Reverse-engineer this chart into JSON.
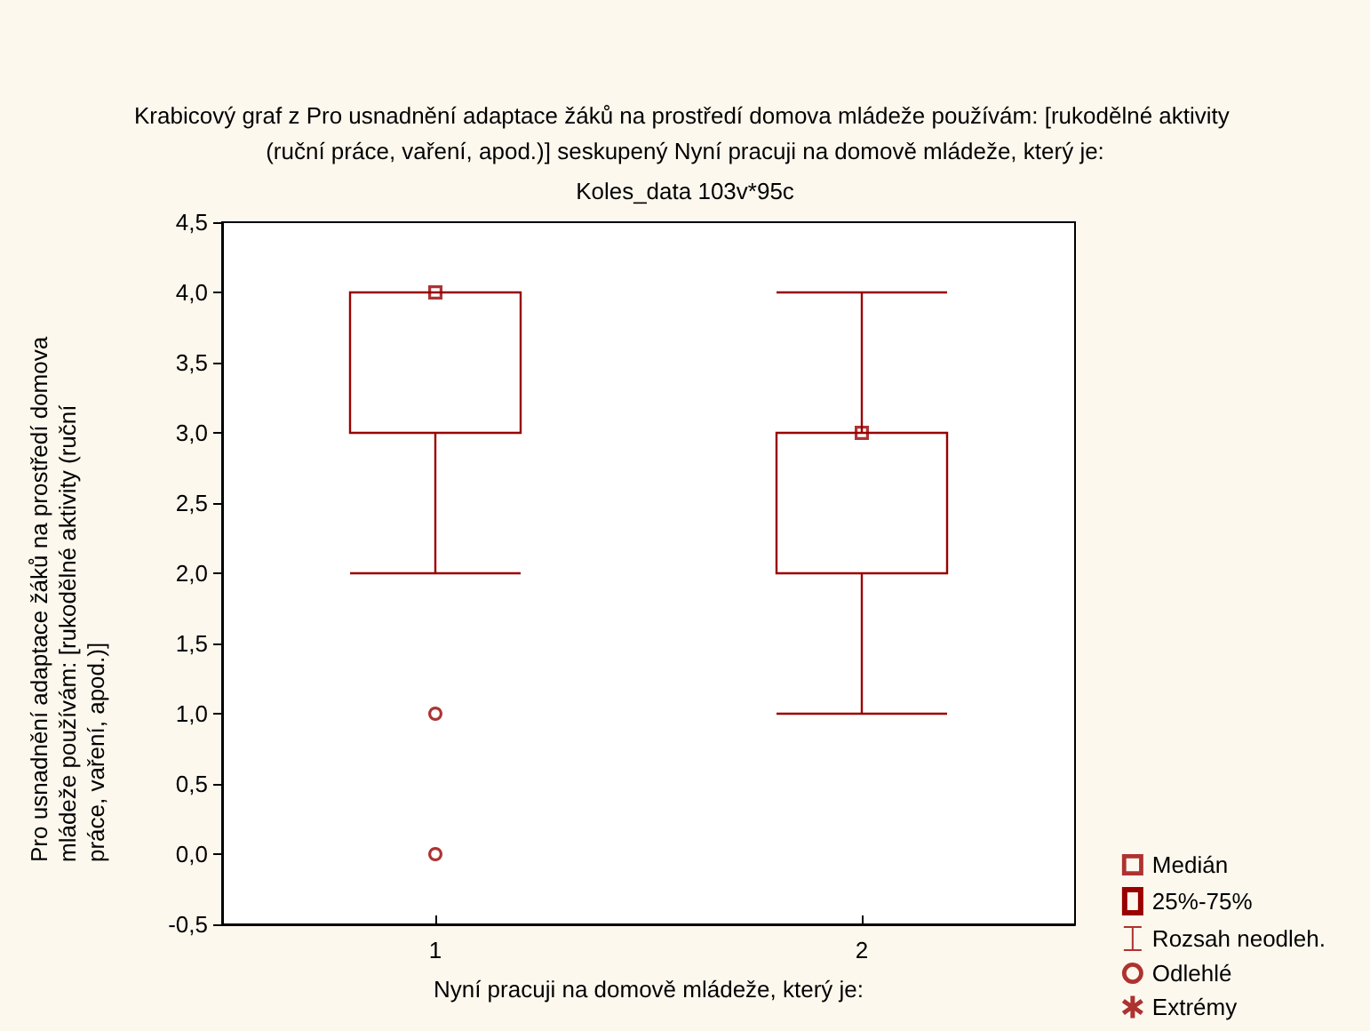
{
  "chart_data": {
    "type": "box",
    "title": "Krabicový graf z Pro usnadnění adaptace žáků na prostředí domova mládeže používám: [rukodělné aktivity (ruční práce, vaření, apod.)] seskupený Nyní pracuji na domově mládeže, který je:",
    "subtitle": "Koles_data 103v*95c",
    "xlabel": "Nyní pracuji na domově mládeže, který je:",
    "ylabel": "Pro usnadnění adaptace žáků na prostředí domova mládeže používám: [rukodělné aktivity (ruční práce, vaření, apod.)]",
    "categories": [
      "1",
      "2"
    ],
    "ylim": [
      -0.5,
      4.5
    ],
    "yticks": [
      {
        "value": -0.5,
        "label": "-0,5"
      },
      {
        "value": 0,
        "label": "0,0"
      },
      {
        "value": 0.5,
        "label": "0,5"
      },
      {
        "value": 1,
        "label": "1,0"
      },
      {
        "value": 1.5,
        "label": "1,5"
      },
      {
        "value": 2,
        "label": "2,0"
      },
      {
        "value": 2.5,
        "label": "2,5"
      },
      {
        "value": 3,
        "label": "3,0"
      },
      {
        "value": 3.5,
        "label": "3,5"
      },
      {
        "value": 4,
        "label": "4,0"
      },
      {
        "value": 4.5,
        "label": "4,5"
      }
    ],
    "annotations": [
      "Rozsah neodleh."
    ],
    "grid": false,
    "legend": "bottom right",
    "series": [
      {
        "name": "25%-75%",
        "color": "#990000",
        "boxes": [
          {
            "low": 2,
            "q1": 3,
            "median": 4,
            "q3": 4,
            "high": 4
          },
          {
            "low": 1,
            "q1": 2,
            "median": 3,
            "q3": 3,
            "high": 4
          }
        ]
      },
      {
        "type": "scatter",
        "name": "Medián",
        "color": "#990000",
        "marker": "square",
        "x": [
          "1",
          "2"
        ],
        "values": [
          4,
          3
        ]
      },
      {
        "type": "scatter",
        "name": "Odlehlé",
        "color": "#990000",
        "marker": "circle",
        "x": [
          "1",
          "1"
        ],
        "values": [
          1,
          0
        ]
      },
      {
        "type": "scatter",
        "name": "Extrémy",
        "color": "#990000",
        "marker": "star",
        "x": [
          "1",
          "2"
        ],
        "values": [
          null,
          null
        ]
      }
    ]
  }
}
